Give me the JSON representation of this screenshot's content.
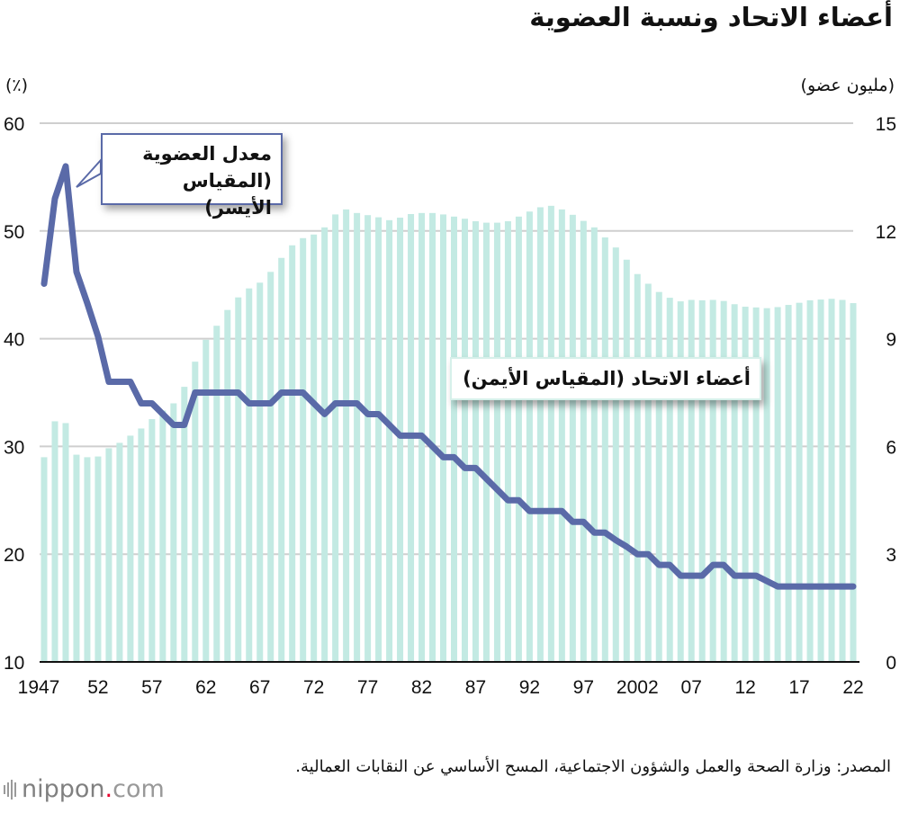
{
  "title": "أعضاء الاتحاد ونسبة العضوية",
  "chart_data": {
    "type": "bar+line",
    "title": "أعضاء الاتحاد ونسبة العضوية",
    "x": [
      1947,
      1948,
      1949,
      1950,
      1951,
      1952,
      1953,
      1954,
      1955,
      1956,
      1957,
      1958,
      1959,
      1960,
      1961,
      1962,
      1963,
      1964,
      1965,
      1966,
      1967,
      1968,
      1969,
      1970,
      1971,
      1972,
      1973,
      1974,
      1975,
      1976,
      1977,
      1978,
      1979,
      1980,
      1981,
      1982,
      1983,
      1984,
      1985,
      1986,
      1987,
      1988,
      1989,
      1990,
      1991,
      1992,
      1993,
      1994,
      1995,
      1996,
      1997,
      1998,
      1999,
      2000,
      2001,
      2002,
      2003,
      2004,
      2005,
      2006,
      2007,
      2008,
      2009,
      2010,
      2011,
      2012,
      2013,
      2014,
      2015,
      2016,
      2017,
      2018,
      2019,
      2020,
      2021,
      2022
    ],
    "x_tick_labels": [
      "1947",
      "52",
      "57",
      "62",
      "67",
      "72",
      "77",
      "82",
      "87",
      "92",
      "97",
      "2002",
      "07",
      "12",
      "17",
      "22"
    ],
    "y_left": {
      "label": "(٪)",
      "range": [
        10,
        60
      ],
      "ticks": [
        "10",
        "20",
        "30",
        "40",
        "50",
        "60"
      ]
    },
    "y_right": {
      "label": "(مليون عضو)",
      "range": [
        0,
        15
      ],
      "ticks": [
        "0",
        "3",
        "6",
        "9",
        "12",
        "15"
      ]
    },
    "grid": true,
    "series": [
      {
        "name": "أعضاء الاتحاد (المقياس الأيمن)",
        "type": "bar",
        "axis": "right",
        "color": "#c3eae3",
        "values": [
          5.7,
          6.7,
          6.65,
          5.77,
          5.7,
          5.72,
          5.95,
          6.1,
          6.3,
          6.5,
          6.76,
          7.0,
          7.2,
          7.66,
          8.36,
          8.97,
          9.36,
          9.8,
          10.15,
          10.4,
          10.56,
          10.86,
          11.25,
          11.6,
          11.8,
          11.9,
          12.1,
          12.46,
          12.6,
          12.5,
          12.44,
          12.38,
          12.3,
          12.37,
          12.47,
          12.5,
          12.5,
          12.46,
          12.4,
          12.34,
          12.27,
          12.23,
          12.23,
          12.27,
          12.4,
          12.54,
          12.66,
          12.7,
          12.6,
          12.45,
          12.28,
          12.1,
          11.82,
          11.54,
          11.2,
          10.8,
          10.53,
          10.3,
          10.14,
          10.04,
          10.08,
          10.07,
          10.08,
          10.05,
          9.96,
          9.89,
          9.87,
          9.85,
          9.88,
          9.94,
          10.0,
          10.07,
          10.09,
          10.11,
          10.08,
          9.99
        ]
      },
      {
        "name": "معدل العضوية (المقياس الأيسر)",
        "type": "line",
        "axis": "left",
        "color": "#5a6aa8",
        "values": [
          45.1,
          53,
          56,
          46.2,
          43.3,
          40.2,
          36,
          36,
          36,
          34,
          34,
          33,
          32,
          32,
          35,
          35,
          35,
          35,
          35,
          34,
          34,
          34,
          35,
          35,
          35,
          34,
          33,
          34,
          34,
          34,
          33,
          33,
          32,
          31,
          31,
          31,
          30,
          29,
          29,
          28,
          28,
          27,
          26,
          25,
          25,
          24,
          24,
          24,
          24,
          23,
          23,
          22,
          22,
          21.3,
          20.7,
          20,
          20,
          19,
          19,
          18,
          18,
          18,
          19,
          19,
          18,
          18,
          18,
          17.5,
          17,
          17,
          17,
          17,
          17,
          17,
          17,
          17
        ]
      }
    ]
  },
  "callouts": {
    "rate_line1": "معدل العضوية",
    "rate_line2": "(المقياس الأيسر)",
    "members": "أعضاء الاتحاد (المقياس الأيمن)"
  },
  "source": "المصدر: وزارة الصحة والعمل والشؤون الاجتماعية، المسح الأساسي عن النقابات العمالية.",
  "logo": {
    "name": "nippon",
    "dot": ".",
    "tld": "com"
  }
}
